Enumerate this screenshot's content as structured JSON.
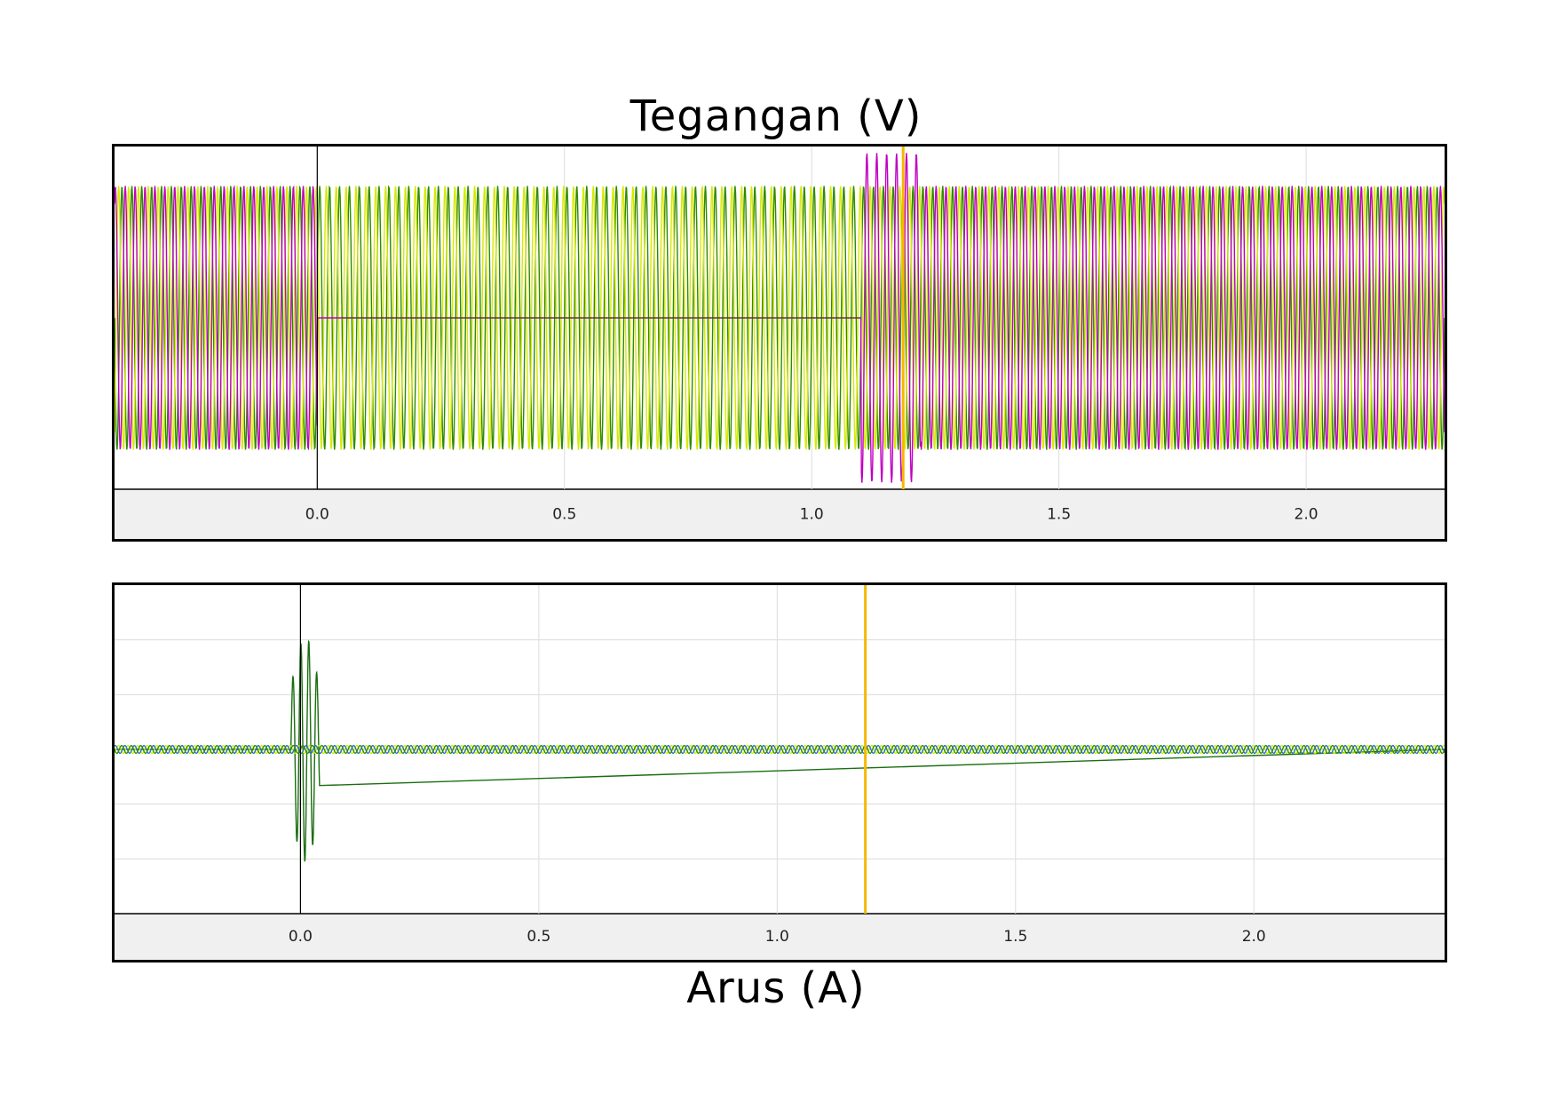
{
  "titles": {
    "top": "Tegangan (V)",
    "bottom": "Arus (A)"
  },
  "colors": {
    "green": "#2e8b00",
    "yellow": "#d8e800",
    "magenta": "#c000c0",
    "blue": "#1e6fd8",
    "dark_green": "#1a6e10",
    "cursor": "#f5b800",
    "axis_band": "#f0f0f0",
    "grid": "#dcdcdc"
  },
  "chart_data": [
    {
      "type": "line",
      "title": "Tegangan (V)",
      "xlabel": "",
      "ylabel": "",
      "xlim": [
        -0.41,
        2.28
      ],
      "x_ticks": [
        "0.0",
        "0.5",
        "1.0",
        "1.5",
        "2.0"
      ],
      "x_tick_values": [
        0.0,
        0.5,
        1.0,
        1.5,
        2.0
      ],
      "grid": true,
      "cursor_x": 1.185,
      "trigger_x": 0.0,
      "series": [
        {
          "color": "green",
          "description_segments": [
            {
              "x0": -0.41,
              "x1": 0.0,
              "amplitude": 1.0
            },
            {
              "x0": 0.0,
              "x1": 1.1,
              "amplitude": 1.0
            },
            {
              "x0": 1.1,
              "x1": 2.28,
              "amplitude": 1.0
            }
          ]
        },
        {
          "color": "yellow",
          "description_segments": [
            {
              "x0": -0.41,
              "x1": 0.0,
              "amplitude": 1.0
            },
            {
              "x0": 0.0,
              "x1": 1.1,
              "amplitude": 1.0
            },
            {
              "x0": 1.1,
              "x1": 2.28,
              "amplitude": 1.0
            }
          ]
        },
        {
          "color": "magenta",
          "description_segments": [
            {
              "x0": -0.41,
              "x1": 0.0,
              "amplitude": 1.0
            },
            {
              "x0": 0.0,
              "x1": 1.1,
              "amplitude": 0.0
            },
            {
              "x0": 1.1,
              "x1": 2.28,
              "amplitude": 1.0
            }
          ]
        }
      ]
    },
    {
      "type": "line",
      "title": "Arus (A)",
      "xlabel": "",
      "ylabel": "",
      "xlim": [
        -0.39,
        2.4
      ],
      "x_ticks": [
        "0.0",
        "0.5",
        "1.0",
        "1.5",
        "2.0"
      ],
      "x_tick_values": [
        0.0,
        0.5,
        1.0,
        1.5,
        2.0
      ],
      "grid": true,
      "cursor_x": 1.185,
      "trigger_x": 0.0,
      "y_gridlines": 5,
      "series": [
        {
          "color": "dark_green",
          "burst": {
            "x0": -0.02,
            "x1": 0.04,
            "peak": 2.3
          }
        },
        {
          "color": "yellow",
          "steady_amplitude": 0.05
        },
        {
          "color": "blue",
          "steady_amplitude": 0.05
        },
        {
          "color": "green",
          "steady_amplitude": 0.05
        }
      ]
    }
  ]
}
